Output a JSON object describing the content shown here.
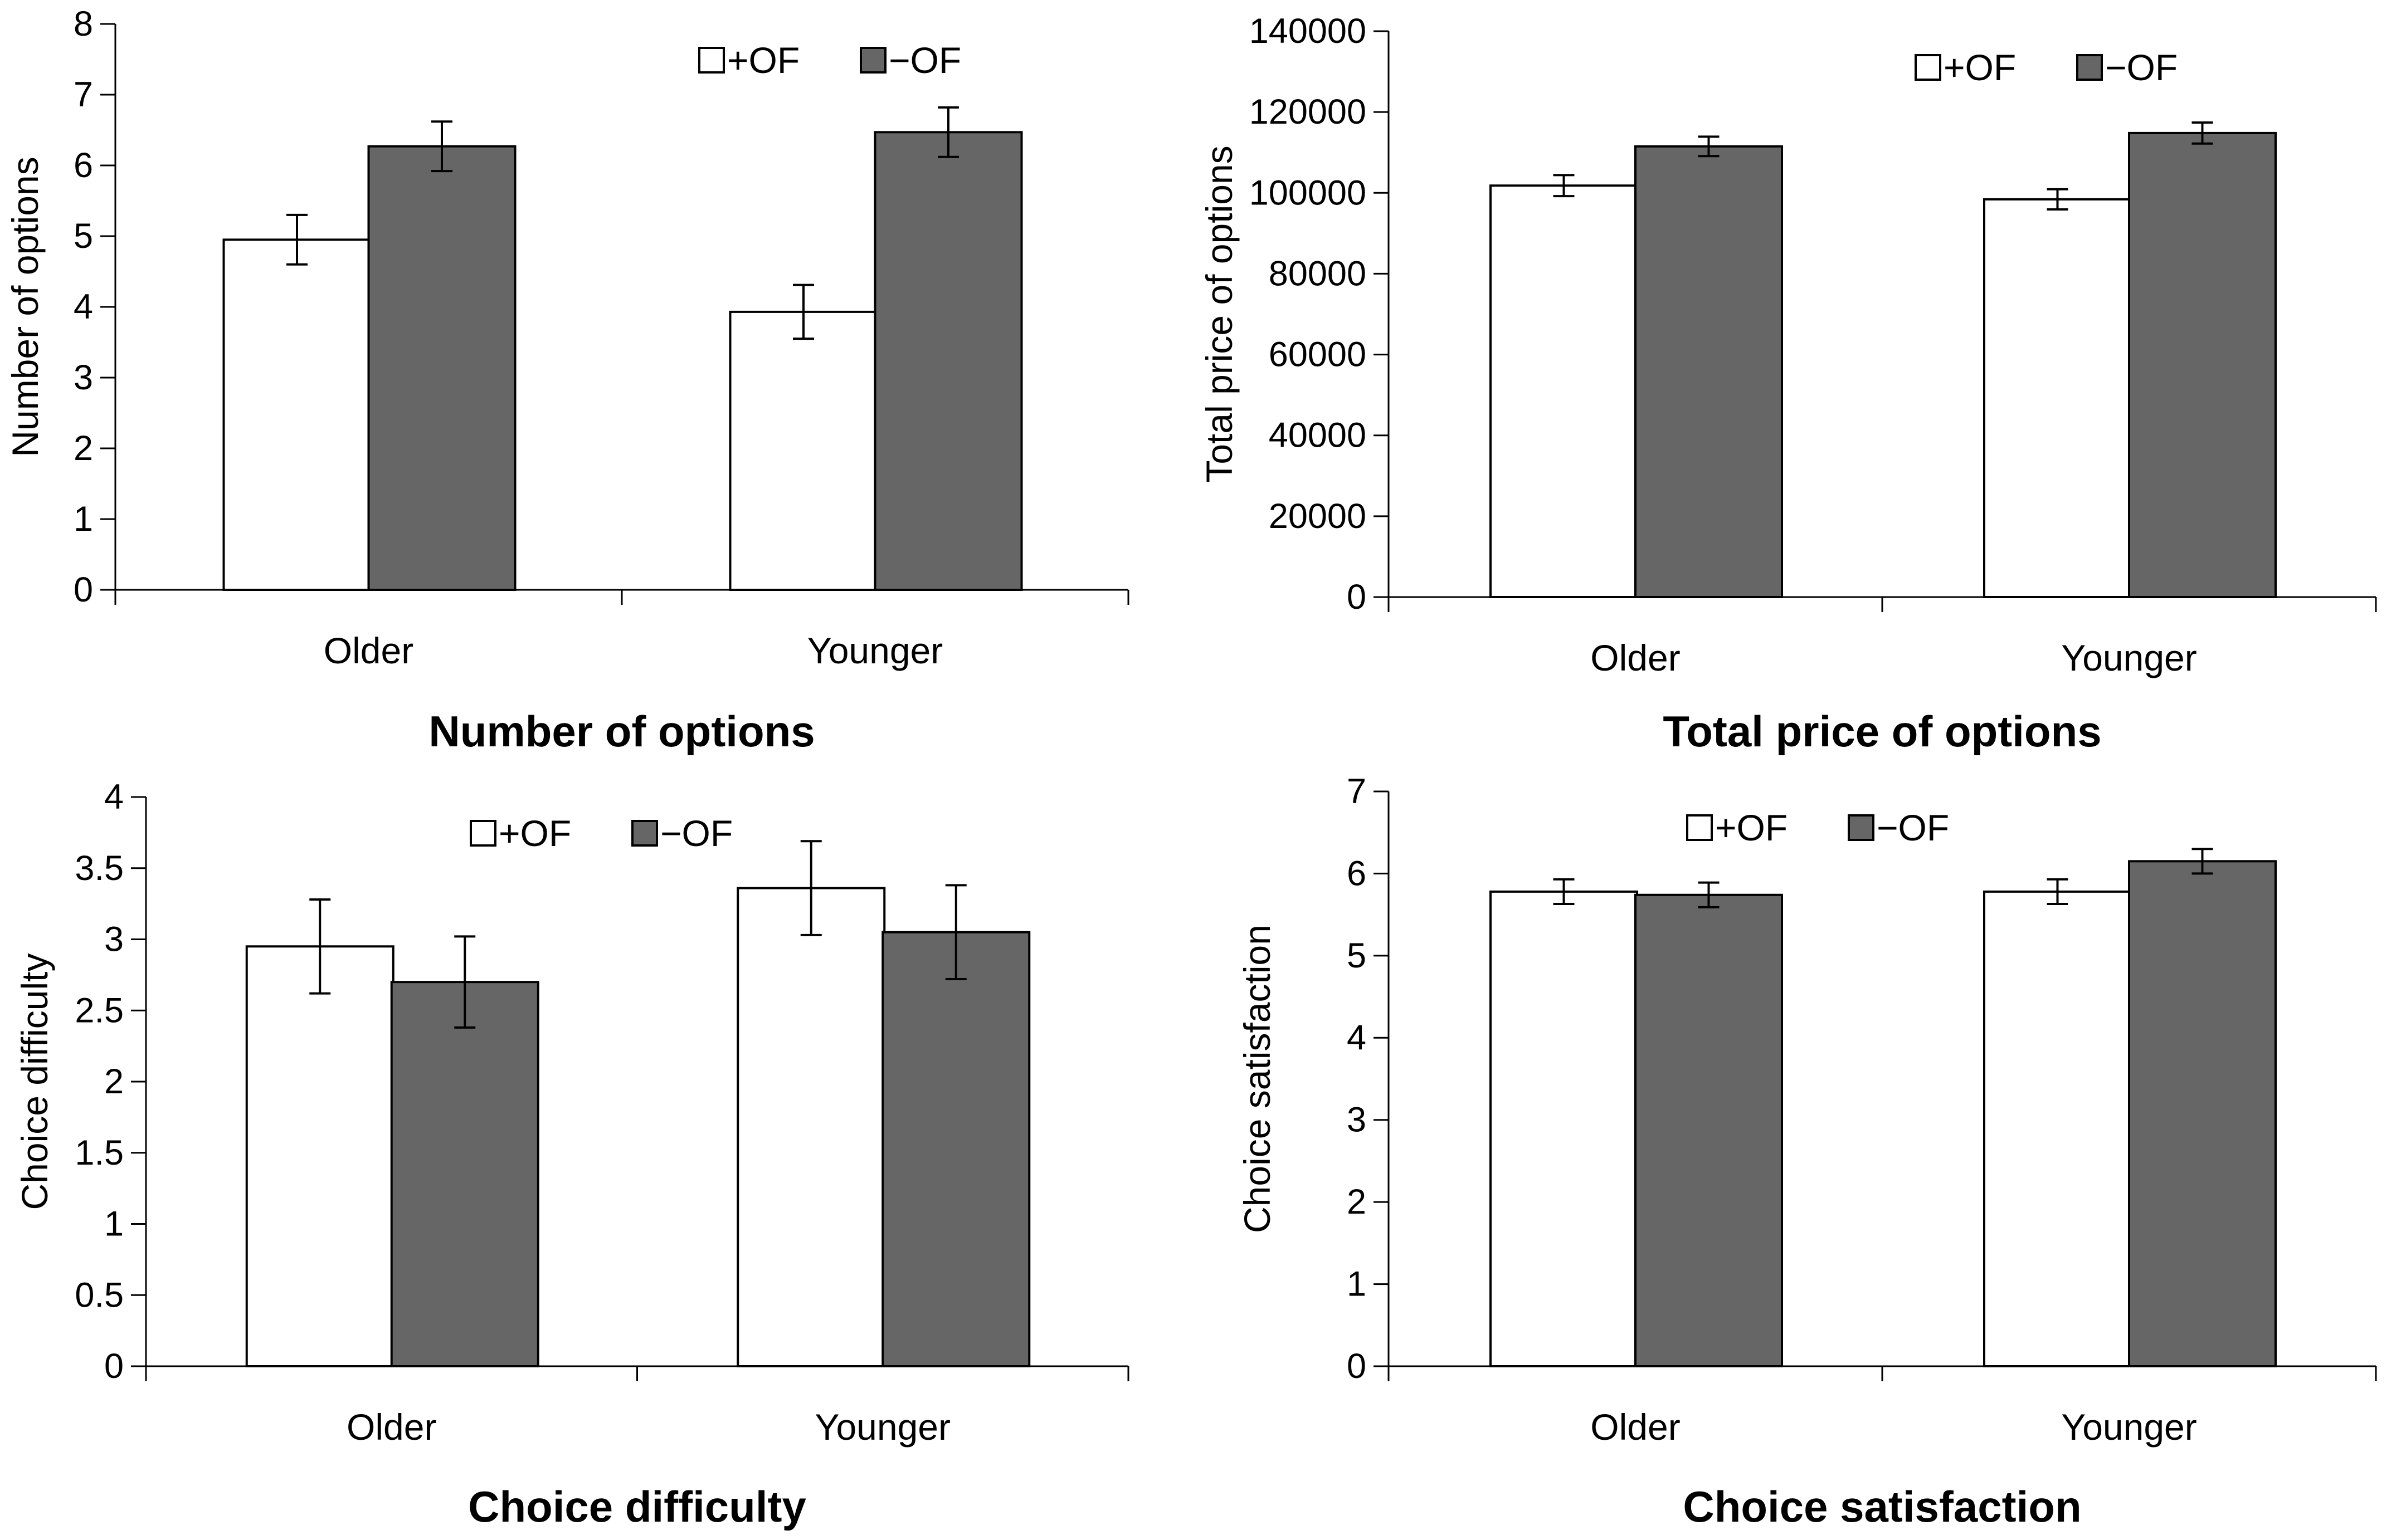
{
  "chart_data": [
    {
      "type": "bar",
      "title": "Number of options",
      "xlabel": "",
      "ylabel": "Number of options",
      "categories": [
        "Older",
        "Younger"
      ],
      "ylim": [
        0,
        8
      ],
      "yticks": [
        "0",
        "1",
        "2",
        "3",
        "4",
        "5",
        "6",
        "7",
        "8"
      ],
      "grid": false,
      "legend_position": "top-right",
      "error_bars": true,
      "series": [
        {
          "name": "+OF",
          "color": "#ffffff",
          "values": [
            4.95,
            3.93
          ],
          "errors": [
            0.35,
            0.38
          ]
        },
        {
          "name": "−OF",
          "color": "#666666",
          "values": [
            6.27,
            6.47
          ],
          "errors": [
            0.35,
            0.35
          ]
        }
      ]
    },
    {
      "type": "bar",
      "title": "Total price of options",
      "xlabel": "",
      "ylabel": "Total price of options",
      "categories": [
        "Older",
        "Younger"
      ],
      "ylim": [
        0,
        140000
      ],
      "yticks": [
        "0",
        "20000",
        "40000",
        "60000",
        "80000",
        "100000",
        "120000",
        "140000"
      ],
      "grid": false,
      "legend_position": "top-right",
      "error_bars": true,
      "series": [
        {
          "name": "+OF",
          "color": "#ffffff",
          "values": [
            101800,
            98400
          ],
          "errors": [
            2600,
            2500
          ]
        },
        {
          "name": "−OF",
          "color": "#666666",
          "values": [
            111500,
            114800
          ],
          "errors": [
            2400,
            2600
          ]
        }
      ]
    },
    {
      "type": "bar",
      "title": "Choice difficulty",
      "xlabel": "",
      "ylabel": "Choice difficulty",
      "categories": [
        "Older",
        "Younger"
      ],
      "ylim": [
        0,
        4
      ],
      "yticks": [
        "0",
        "0.5",
        "1",
        "1.5",
        "2",
        "2.5",
        "3",
        "3.5",
        "4"
      ],
      "grid": false,
      "legend_position": "top-center",
      "error_bars": true,
      "series": [
        {
          "name": "+OF",
          "color": "#ffffff",
          "values": [
            2.95,
            3.36
          ],
          "errors": [
            0.33,
            0.33
          ]
        },
        {
          "name": "−OF",
          "color": "#666666",
          "values": [
            2.7,
            3.05
          ],
          "errors": [
            0.32,
            0.33
          ]
        }
      ]
    },
    {
      "type": "bar",
      "title": "Choice satisfaction",
      "xlabel": "",
      "ylabel": "Choice satisfaction",
      "categories": [
        "Older",
        "Younger"
      ],
      "ylim": [
        0,
        7
      ],
      "yticks": [
        "0",
        "1",
        "2",
        "3",
        "4",
        "5",
        "6",
        "7"
      ],
      "grid": false,
      "legend_position": "top-center",
      "error_bars": true,
      "series": [
        {
          "name": "+OF",
          "color": "#ffffff",
          "values": [
            5.78,
            5.78
          ],
          "errors": [
            0.15,
            0.15
          ]
        },
        {
          "name": "−OF",
          "color": "#666666",
          "values": [
            5.74,
            6.15
          ],
          "errors": [
            0.15,
            0.15
          ]
        }
      ]
    }
  ]
}
